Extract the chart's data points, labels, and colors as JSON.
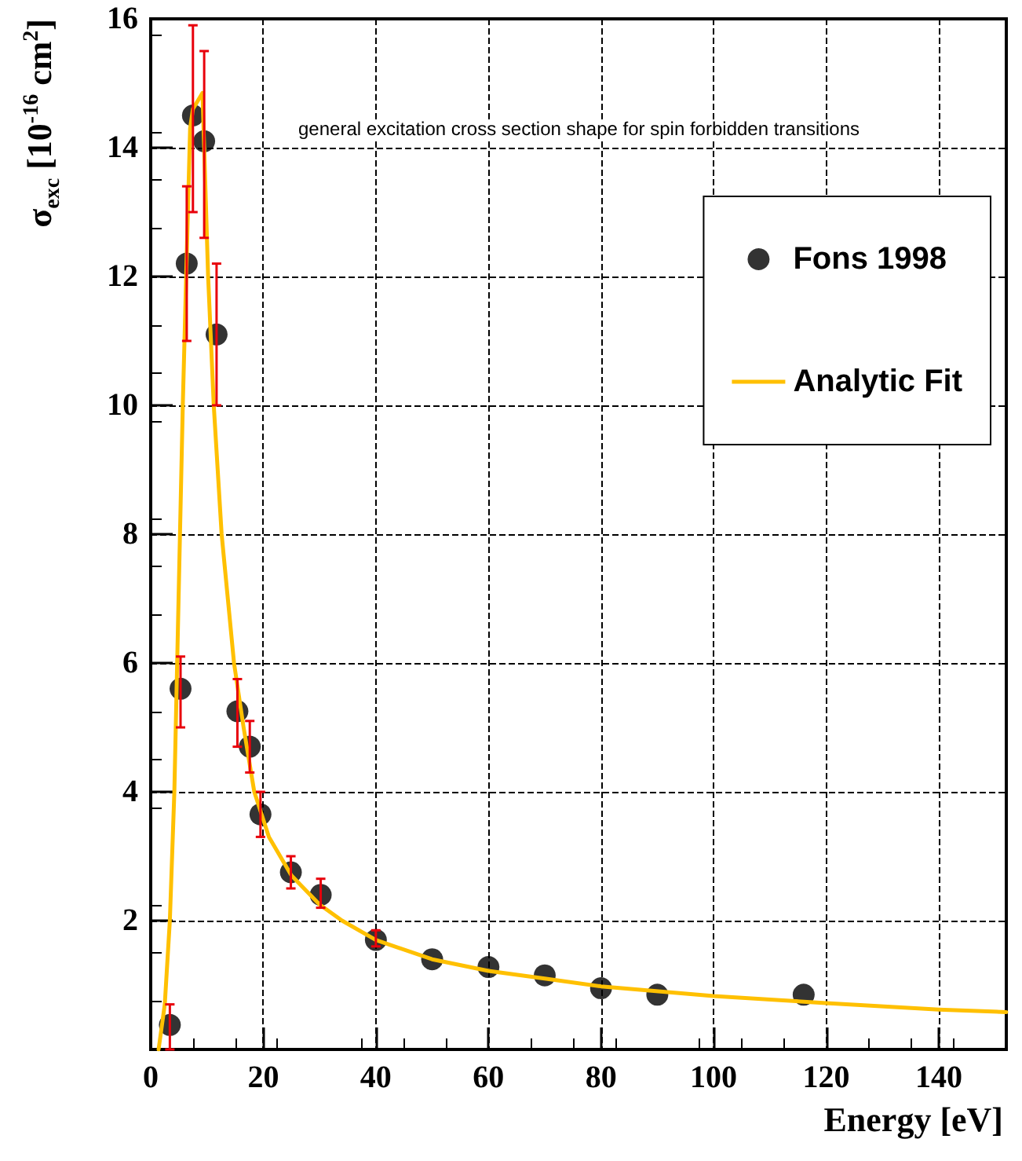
{
  "chart_data": {
    "type": "scatter",
    "xlabel": "Energy [eV]",
    "ylabel": "σ$_{exc}$ [10$^{-16}$ cm$^{2}$]",
    "annotations": [
      "general excitation cross section shape for spin forbidden transitions"
    ],
    "xlim": [
      0,
      152
    ],
    "xticks": [
      0,
      20,
      40,
      60,
      80,
      100,
      120,
      140
    ],
    "ylim": [
      0,
      16
    ],
    "yticks": [
      {
        "value": 0,
        "label": null
      },
      2,
      4,
      6,
      8,
      10,
      12,
      14,
      16
    ],
    "grid": true,
    "legend": "top right",
    "marker": "circle",
    "series": [
      {
        "name": "Fons 1998",
        "color": "#000000",
        "x": [
          3.4,
          5.3,
          6.4,
          7.5,
          9.5,
          11.7,
          15.4,
          17.6,
          19.5,
          24.9,
          30.2,
          40,
          50,
          60,
          70,
          80,
          90,
          116
        ],
        "values": [
          0.38,
          5.6,
          12.2,
          14.5,
          14.1,
          11.1,
          5.25,
          4.7,
          3.65,
          2.75,
          2.4,
          1.7,
          1.4,
          1.28,
          1.15,
          0.95,
          0.85,
          0.85
        ],
        "errors": [
          [
            0,
            0.7
          ],
          [
            5.0,
            6.1
          ],
          [
            11.0,
            13.4
          ],
          [
            13.0,
            15.9
          ],
          [
            12.6,
            15.5
          ],
          [
            10.0,
            12.2
          ],
          [
            4.7,
            5.75
          ],
          [
            4.3,
            5.1
          ],
          [
            3.3,
            4.0
          ],
          [
            2.5,
            3.0
          ],
          [
            2.2,
            2.65
          ],
          [
            1.6,
            1.85
          ],
          null,
          null,
          null,
          null,
          null,
          null
        ]
      },
      {
        "name": "Analytic Fit",
        "type": "line",
        "color": "#ffc000",
        "marker": "none",
        "line_style": "solid",
        "x": [
          1.4,
          2.5,
          3.4,
          4.2,
          4.7,
          5.2,
          5.7,
          6.3,
          7,
          7.5,
          9.2,
          10.2,
          11.2,
          12.6,
          14.8,
          16.5,
          18.4,
          21,
          25,
          30,
          34,
          40,
          50,
          60,
          70,
          80,
          100,
          120,
          140,
          152
        ],
        "values": [
          0,
          0.7,
          2,
          4,
          6,
          8,
          10,
          12,
          14.3,
          14.6,
          14.85,
          12,
          10,
          8,
          6,
          5,
          4,
          3.3,
          2.7,
          2.25,
          2,
          1.7,
          1.4,
          1.22,
          1.1,
          0.98,
          0.83,
          0.72,
          0.62,
          0.58
        ]
      }
    ]
  }
}
